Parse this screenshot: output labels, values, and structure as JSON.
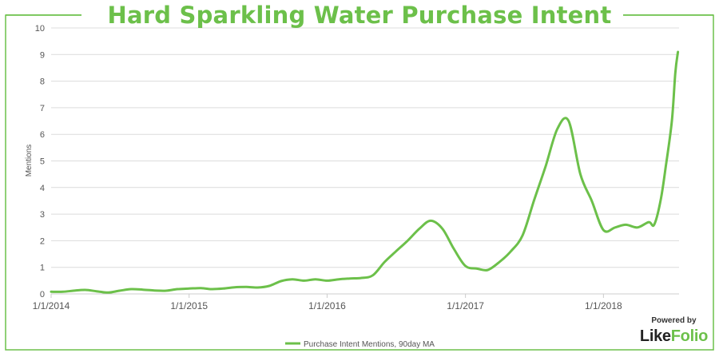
{
  "title": "Hard Sparkling Water Purchase Intent",
  "brand": {
    "powered_by": "Powered by",
    "name_part1": "Like",
    "name_part2": "Folio"
  },
  "colors": {
    "accent": "#6cc04a",
    "line": "#6cc04a",
    "grid": "#dcdcdc",
    "tick_text": "#555555"
  },
  "chart_data": {
    "type": "line",
    "ylabel": "Mentions",
    "ylim": [
      0,
      10
    ],
    "yticks": [
      0,
      1,
      2,
      3,
      4,
      5,
      6,
      7,
      8,
      9,
      10
    ],
    "xlim": [
      "2014-01-01",
      "2018-07-20"
    ],
    "xticks": [
      "1/1/2014",
      "1/1/2015",
      "1/1/2016",
      "1/1/2017",
      "1/1/2018"
    ],
    "legend": "bottom-center",
    "grid": "horizontal",
    "series": [
      {
        "name": "Purchase Intent Mentions, 90day MA",
        "x": [
          "2014-01-01",
          "2014-02-01",
          "2014-03-01",
          "2014-04-01",
          "2014-05-01",
          "2014-06-01",
          "2014-07-01",
          "2014-08-01",
          "2014-09-01",
          "2014-10-01",
          "2014-11-01",
          "2014-12-01",
          "2015-01-01",
          "2015-02-01",
          "2015-03-01",
          "2015-04-01",
          "2015-05-01",
          "2015-06-01",
          "2015-07-01",
          "2015-08-01",
          "2015-09-01",
          "2015-10-01",
          "2015-11-01",
          "2015-12-01",
          "2016-01-01",
          "2016-02-01",
          "2016-03-01",
          "2016-04-01",
          "2016-05-01",
          "2016-06-01",
          "2016-07-01",
          "2016-08-01",
          "2016-09-01",
          "2016-10-01",
          "2016-11-01",
          "2016-12-01",
          "2017-01-01",
          "2017-02-01",
          "2017-03-01",
          "2017-04-01",
          "2017-05-01",
          "2017-06-01",
          "2017-07-01",
          "2017-08-01",
          "2017-09-01",
          "2017-10-01",
          "2017-11-01",
          "2017-12-01",
          "2018-01-01",
          "2018-02-01",
          "2018-03-01",
          "2018-04-01",
          "2018-05-01",
          "2018-05-15",
          "2018-06-01",
          "2018-06-15",
          "2018-07-01",
          "2018-07-10",
          "2018-07-17"
        ],
        "y": [
          0.08,
          0.08,
          0.12,
          0.15,
          0.1,
          0.05,
          0.12,
          0.18,
          0.16,
          0.13,
          0.12,
          0.18,
          0.2,
          0.22,
          0.18,
          0.2,
          0.25,
          0.26,
          0.24,
          0.3,
          0.48,
          0.55,
          0.5,
          0.55,
          0.5,
          0.55,
          0.58,
          0.6,
          0.7,
          1.2,
          1.6,
          2.0,
          2.45,
          2.75,
          2.45,
          1.7,
          1.05,
          0.95,
          0.9,
          1.2,
          1.6,
          2.2,
          3.5,
          4.8,
          6.2,
          6.5,
          4.5,
          3.5,
          2.4,
          2.5,
          2.6,
          2.5,
          2.7,
          2.6,
          3.5,
          4.8,
          6.5,
          8.3,
          9.1
        ]
      }
    ]
  }
}
